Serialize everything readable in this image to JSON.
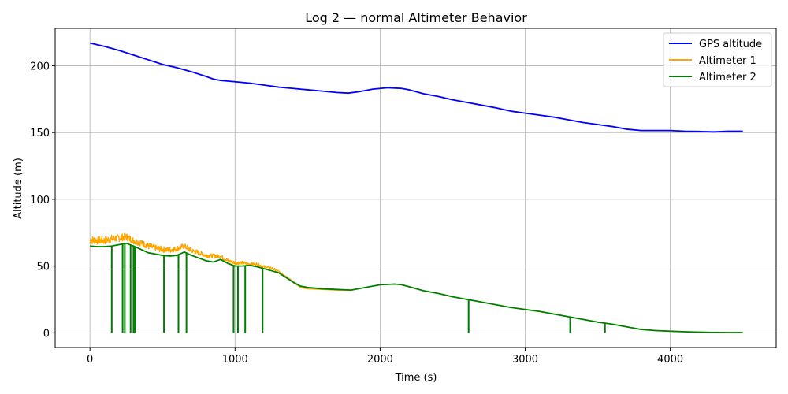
{
  "chart_data": {
    "type": "line",
    "title": "Log 2 — normal Altimeter Behavior",
    "xlabel": "Time (s)",
    "ylabel": "Altitude (m)",
    "xlim": [
      -240,
      4730
    ],
    "ylim": [
      -11,
      228
    ],
    "xticks": [
      0,
      1000,
      2000,
      3000,
      4000
    ],
    "yticks": [
      0,
      50,
      100,
      150,
      200
    ],
    "grid": true,
    "legend_position": "top-right",
    "series": [
      {
        "name": "GPS altitude",
        "color": "#0000ff",
        "x": [
          0,
          100,
          200,
          300,
          400,
          500,
          600,
          700,
          800,
          850,
          900,
          1000,
          1100,
          1200,
          1300,
          1400,
          1500,
          1600,
          1700,
          1780,
          1850,
          1950,
          2050,
          2150,
          2200,
          2300,
          2400,
          2500,
          2600,
          2700,
          2800,
          2900,
          3000,
          3100,
          3200,
          3300,
          3400,
          3500,
          3600,
          3700,
          3800,
          3900,
          4000,
          4100,
          4200,
          4300,
          4400,
          4500
        ],
        "y": [
          217,
          214.5,
          211.5,
          208,
          204.5,
          201,
          198.5,
          195.5,
          192,
          190,
          189,
          188,
          187,
          185.5,
          184,
          183,
          182,
          181,
          180,
          179.5,
          180.5,
          182.5,
          183.5,
          183,
          182,
          179,
          177,
          174.5,
          172.5,
          170.5,
          168.5,
          166,
          164.5,
          163,
          161.5,
          159.5,
          157.5,
          156,
          154.5,
          152.5,
          151.5,
          151.5,
          151.5,
          151,
          150.8,
          150.5,
          151,
          151
        ]
      },
      {
        "name": "Altimeter 1",
        "color": "#ffa500",
        "noise": true,
        "x": [
          0,
          100,
          150,
          200,
          250,
          300,
          350,
          400,
          450,
          500,
          550,
          600,
          650,
          700,
          750,
          800,
          850,
          900,
          950,
          1000,
          1050,
          1100,
          1150,
          1200,
          1250,
          1300,
          1350,
          1400,
          1450,
          1500,
          1600,
          1700,
          1800,
          1900,
          2000,
          2100,
          2150,
          2200,
          2300,
          2400,
          2500,
          2600,
          2700,
          2800,
          2900,
          3000,
          3100,
          3200,
          3300,
          3400,
          3500,
          3600,
          3700,
          3800,
          3900,
          4000,
          4100,
          4200,
          4300,
          4400,
          4500
        ],
        "y": [
          69.5,
          69,
          70.5,
          71,
          72,
          69,
          67.5,
          65,
          63.5,
          62.5,
          62,
          63,
          65,
          61.5,
          60,
          58,
          57.5,
          57.5,
          54,
          52.5,
          52.5,
          51.5,
          51.5,
          49.5,
          48.5,
          46,
          42.5,
          38,
          34,
          33,
          32.5,
          32,
          32,
          34,
          36,
          36.5,
          36,
          34.5,
          31.5,
          29.5,
          27,
          25,
          23,
          21,
          19,
          17.5,
          16,
          14,
          12,
          10,
          8,
          6.5,
          4.5,
          2.5,
          1.7,
          1.2,
          0.8,
          0.5,
          0.3,
          0.2,
          0.2
        ]
      },
      {
        "name": "Altimeter 2",
        "color": "#008000",
        "x": [
          0,
          50,
          100,
          150,
          200,
          250,
          300,
          350,
          400,
          450,
          500,
          550,
          600,
          650,
          700,
          750,
          800,
          850,
          900,
          950,
          1000,
          1050,
          1100,
          1150,
          1200,
          1250,
          1300,
          1350,
          1400,
          1450,
          1500,
          1600,
          1700,
          1800,
          1900,
          2000,
          2100,
          2150,
          2200,
          2300,
          2400,
          2500,
          2600,
          2700,
          2800,
          2900,
          3000,
          3100,
          3200,
          3300,
          3400,
          3500,
          3600,
          3700,
          3800,
          3900,
          4000,
          4100,
          4200,
          4300,
          4400,
          4500
        ],
        "y": [
          65,
          64.5,
          64.5,
          65,
          66,
          67,
          65,
          62.5,
          60,
          59,
          58,
          57.5,
          58,
          60.5,
          58,
          56,
          54,
          53,
          55,
          52,
          50,
          50,
          50.5,
          49.5,
          48,
          46.5,
          45,
          41.5,
          38,
          35,
          34,
          33,
          32.5,
          32,
          34,
          36,
          36.5,
          36,
          34.5,
          31.5,
          29.5,
          27,
          25,
          23,
          21,
          19,
          17.5,
          16,
          14,
          12,
          10,
          8,
          6.5,
          4.5,
          2.5,
          1.7,
          1.2,
          0.8,
          0.5,
          0.3,
          0.2,
          0.2
        ]
      }
    ],
    "dropouts": [
      150,
      225,
      240,
      280,
      300,
      310,
      510,
      610,
      665,
      990,
      1020,
      1070,
      1190,
      2610,
      3310,
      3550
    ]
  }
}
